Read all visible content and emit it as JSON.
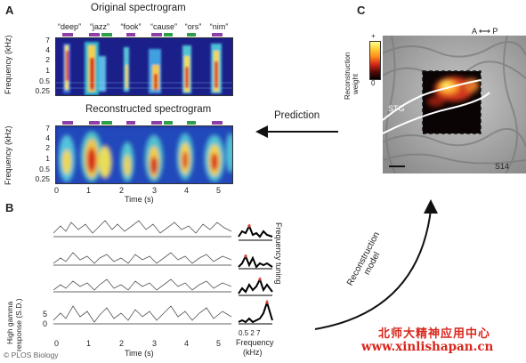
{
  "panel_a": {
    "letter": "A",
    "original_title": "Original spectrogram",
    "reconstructed_title": "Reconstructed spectrogram",
    "words": [
      "“deep”",
      "“jazz”",
      "“fook”",
      "“cause”",
      "“ors”",
      "“nim”"
    ],
    "freq_axis_label": "Frequency (kHz)",
    "freq_ticks": [
      "7",
      "4",
      "2",
      "1",
      "0.5",
      "0.25"
    ],
    "time_ticks": [
      "0",
      "1",
      "2",
      "3",
      "4",
      "5"
    ],
    "time_label": "Time (s)"
  },
  "prediction_label": "Prediction",
  "panel_b": {
    "letter": "B",
    "y_label_line1": "High gamma",
    "y_label_line2": "response (S.D.)",
    "y_ticks": [
      "5",
      "0"
    ],
    "time_ticks": [
      "0",
      "1",
      "2",
      "3",
      "4",
      "5"
    ],
    "time_label": "Time (s)",
    "freq_tuning_label": "Frequency tuning",
    "freq_ticks": "0.5 2  7",
    "freq_label_line1": "Frequency",
    "freq_label_line2": "(kHz)"
  },
  "panel_c": {
    "letter": "C",
    "direction_label": "A ⟷ P",
    "colorbar_top": "+",
    "colorbar_bottom": "0",
    "colorbar_label_line1": "Reconstruction",
    "colorbar_label_line2": "weight",
    "region_label": "STG",
    "subject_label": "S14"
  },
  "reconstruction_model_label_line1": "Reconstruction",
  "reconstruction_model_label_line2": "model",
  "credit": "© PLOS Biology",
  "watermark_cn": "北师大精神应用中心",
  "watermark_url": "www.xinlishapan.cn",
  "colors": {
    "bar_purple": "#8e3fa8",
    "bar_green": "#2fa04a",
    "spectro_bg": "#1b1f8a",
    "arrow": "#111111"
  }
}
